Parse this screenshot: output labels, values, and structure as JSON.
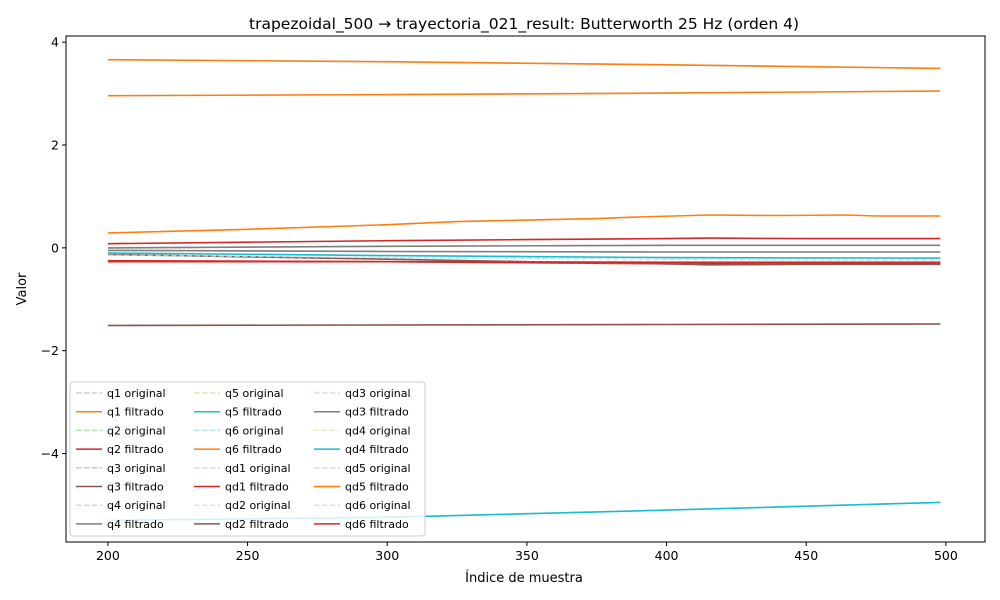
{
  "chart_data": {
    "type": "line",
    "title": "trapezoidal_500 → trayectoria_021_result: Butterworth 25 Hz (orden 4)",
    "xlabel": "Índice de muestra",
    "ylabel": "Valor",
    "xlim": [
      185,
      514
    ],
    "ylim": [
      -5.72,
      4.12
    ],
    "xticks": [
      200,
      250,
      300,
      350,
      400,
      450,
      500
    ],
    "yticks": [
      -4,
      -2,
      0,
      2,
      4
    ],
    "xtick_labels": [
      "200",
      "250",
      "300",
      "350",
      "400",
      "450",
      "500"
    ],
    "ytick_labels": [
      "−4",
      "−2",
      "0",
      "2",
      "4"
    ],
    "grid": false,
    "legend_position": "lower-left",
    "legend_columns": 3,
    "series": [
      {
        "name": "q1 original",
        "style": "dashed",
        "color": "#aec7e8",
        "x": [
          200,
          300,
          400,
          498
        ],
        "values": [
          3.66,
          3.62,
          3.56,
          3.49
        ]
      },
      {
        "name": "q1 filtrado",
        "style": "solid",
        "color": "#ff7f0e",
        "x": [
          200,
          300,
          400,
          498
        ],
        "values": [
          3.66,
          3.62,
          3.56,
          3.49
        ]
      },
      {
        "name": "q2 original",
        "style": "dashed",
        "color": "#98df8a",
        "x": [
          200,
          300,
          400,
          498
        ],
        "values": [
          -0.25,
          -0.27,
          -0.31,
          -0.31
        ]
      },
      {
        "name": "q2 filtrado",
        "style": "solid",
        "color": "#d62728",
        "x": [
          200,
          300,
          400,
          498
        ],
        "values": [
          -0.25,
          -0.27,
          -0.31,
          -0.31
        ]
      },
      {
        "name": "q3 original",
        "style": "dashed",
        "color": "#c5b0d5",
        "x": [
          200,
          300,
          400,
          498
        ],
        "values": [
          -1.51,
          -1.5,
          -1.49,
          -1.48
        ]
      },
      {
        "name": "q3 filtrado",
        "style": "solid",
        "color": "#8c564b",
        "x": [
          200,
          300,
          400,
          498
        ],
        "values": [
          -1.51,
          -1.5,
          -1.49,
          -1.48
        ]
      },
      {
        "name": "q4 original",
        "style": "dashed",
        "color": "#f7b6d2",
        "x": [
          200,
          300,
          400,
          498
        ],
        "values": [
          0.0,
          0.03,
          0.05,
          0.05
        ]
      },
      {
        "name": "q4 filtrado",
        "style": "solid",
        "color": "#7f7f7f",
        "x": [
          200,
          300,
          400,
          498
        ],
        "values": [
          0.0,
          0.03,
          0.05,
          0.05
        ]
      },
      {
        "name": "q5 original",
        "style": "dashed",
        "color": "#dbdb8d",
        "x": [
          200,
          300,
          400,
          498
        ],
        "values": [
          -5.3,
          -5.24,
          -5.1,
          -4.95
        ]
      },
      {
        "name": "q5 filtrado",
        "style": "solid",
        "color": "#17becf",
        "x": [
          200,
          300,
          400,
          498
        ],
        "values": [
          -5.3,
          -5.24,
          -5.1,
          -4.95
        ]
      },
      {
        "name": "q6 original",
        "style": "dashed",
        "color": "#9edae5",
        "x": [
          200,
          300,
          400,
          498
        ],
        "values": [
          2.96,
          2.98,
          3.01,
          3.05
        ]
      },
      {
        "name": "q6 filtrado",
        "style": "solid",
        "color": "#ff7f0e",
        "x": [
          200,
          300,
          400,
          498
        ],
        "values": [
          2.96,
          2.98,
          3.01,
          3.05
        ]
      },
      {
        "name": "qd1 original",
        "style": "dashed",
        "color": "#c7e9c0",
        "x": [
          200,
          250,
          300,
          350,
          400,
          415,
          450,
          498
        ],
        "values": [
          0.08,
          0.11,
          0.14,
          0.16,
          0.18,
          0.19,
          0.18,
          0.18
        ]
      },
      {
        "name": "qd1 filtrado",
        "style": "solid",
        "color": "#d62728",
        "x": [
          200,
          250,
          300,
          350,
          400,
          415,
          450,
          498
        ],
        "values": [
          0.08,
          0.11,
          0.14,
          0.16,
          0.18,
          0.19,
          0.18,
          0.18
        ]
      },
      {
        "name": "qd2 original",
        "style": "dashed",
        "color": "#dadaeb",
        "x": [
          200,
          300,
          350,
          400,
          415,
          450,
          498
        ],
        "values": [
          -0.13,
          -0.22,
          -0.27,
          -0.31,
          -0.33,
          -0.32,
          -0.32
        ]
      },
      {
        "name": "qd2 filtrado",
        "style": "solid",
        "color": "#8c564b",
        "x": [
          200,
          300,
          350,
          400,
          415,
          450,
          498
        ],
        "values": [
          -0.13,
          -0.22,
          -0.27,
          -0.31,
          -0.33,
          -0.32,
          -0.32
        ]
      },
      {
        "name": "qd3 original",
        "style": "dashed",
        "color": "#f1c6e0",
        "x": [
          200,
          300,
          400,
          498
        ],
        "values": [
          -0.05,
          -0.07,
          -0.08,
          -0.08
        ]
      },
      {
        "name": "qd3 filtrado",
        "style": "solid",
        "color": "#7f7f7f",
        "x": [
          200,
          300,
          400,
          498
        ],
        "values": [
          -0.05,
          -0.07,
          -0.08,
          -0.08
        ]
      },
      {
        "name": "qd4 original",
        "style": "dashed",
        "color": "#e6e6b8",
        "x": [
          200,
          300,
          400,
          498
        ],
        "values": [
          -0.1,
          -0.15,
          -0.19,
          -0.2
        ]
      },
      {
        "name": "qd4 filtrado",
        "style": "solid",
        "color": "#17becf",
        "x": [
          200,
          300,
          400,
          498
        ],
        "values": [
          -0.1,
          -0.15,
          -0.19,
          -0.2
        ]
      },
      {
        "name": "qd5 original",
        "style": "dashed",
        "color": "#c6dbef",
        "x": [
          200,
          300,
          400,
          498
        ],
        "values": [
          -0.14,
          -0.19,
          -0.22,
          -0.24
        ]
      },
      {
        "name": "qd5 filtrado",
        "style": "solid",
        "color": "#ff7f0e",
        "x": [
          200,
          250,
          300,
          325,
          350,
          375,
          390,
          415,
          440,
          465,
          475,
          498
        ],
        "values": [
          0.29,
          0.36,
          0.45,
          0.51,
          0.54,
          0.57,
          0.6,
          0.64,
          0.63,
          0.64,
          0.62,
          0.62
        ]
      },
      {
        "name": "qd6 original",
        "style": "dashed",
        "color": "#c7e9c0",
        "x": [
          200,
          300,
          400,
          498
        ],
        "values": [
          -0.27,
          -0.27,
          -0.27,
          -0.27
        ]
      },
      {
        "name": "qd6 filtrado",
        "style": "solid",
        "color": "#d62728",
        "x": [
          200,
          300,
          400,
          498
        ],
        "values": [
          -0.27,
          -0.27,
          -0.28,
          -0.28
        ]
      }
    ]
  }
}
